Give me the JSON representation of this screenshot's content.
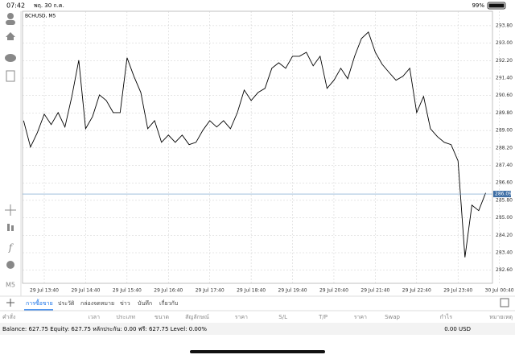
{
  "status_bar": {
    "time": "07:42",
    "date": "พฤ. 30 ก.ค.",
    "battery": "99%"
  },
  "side_toolbar": {
    "timeframe": "M5"
  },
  "chart_data": {
    "type": "line",
    "title": "BCHUSD, M5",
    "categories": [
      null,
      null,
      null,
      "29 Jul 13:40",
      null,
      null,
      null,
      null,
      null,
      "29 Jul 14:40",
      null,
      null,
      null,
      null,
      null,
      "29 Jul 15:40",
      null,
      null,
      null,
      null,
      null,
      "29 Jul 16:40",
      null,
      null,
      null,
      null,
      null,
      "29 Jul 17:40",
      null,
      null,
      null,
      null,
      null,
      "29 Jul 18:40",
      null,
      null,
      null,
      null,
      null,
      "29 Jul 19:40",
      null,
      null,
      null,
      null,
      null,
      "29 Jul 20:40",
      null,
      null,
      null,
      null,
      null,
      "29 Jul 21:40",
      null,
      null,
      null,
      null,
      null,
      "29 Jul 22:40",
      null,
      null,
      null,
      null,
      null,
      "29 Jul 23:40",
      null,
      null,
      null,
      null,
      null,
      "30 Jul 00:40"
    ],
    "values": [
      289.45,
      288.24,
      288.9,
      289.75,
      289.27,
      289.82,
      289.16,
      290.56,
      292.22,
      289.08,
      289.64,
      290.63,
      290.37,
      289.82,
      289.82,
      292.33,
      291.48,
      290.74,
      289.08,
      289.45,
      288.46,
      288.79,
      288.46,
      288.79,
      288.35,
      288.46,
      289.01,
      289.45,
      289.16,
      289.45,
      289.08,
      289.82,
      290.85,
      290.37,
      290.74,
      290.93,
      291.85,
      292.1,
      291.85,
      292.4,
      292.4,
      292.58,
      291.96,
      292.4,
      290.93,
      291.3,
      291.85,
      291.37,
      292.4,
      293.21,
      293.51,
      292.58,
      292.03,
      291.66,
      291.3,
      291.48,
      291.85,
      289.82,
      290.56,
      289.08,
      288.72,
      288.46,
      288.35,
      287.61,
      283.19,
      285.58,
      285.33,
      286.14,
      null,
      null
    ],
    "color": "#000000",
    "ylim": [
      282.0,
      294.46
    ],
    "yticks": [
      {
        "value": 293.8,
        "label": "293.80"
      },
      {
        "value": 293.0,
        "label": "293.00"
      },
      {
        "value": 292.2,
        "label": "292.20"
      },
      {
        "value": 291.4,
        "label": "291.40"
      },
      {
        "value": 290.6,
        "label": "290.60"
      },
      {
        "value": 289.8,
        "label": "289.80"
      },
      {
        "value": 289.0,
        "label": "289.00"
      },
      {
        "value": 288.2,
        "label": "288.20"
      },
      {
        "value": 287.4,
        "label": "287.40"
      },
      {
        "value": 286.6,
        "label": "286.60"
      },
      {
        "value": 285.8,
        "label": "285.80"
      },
      {
        "value": 285.0,
        "label": "285.00"
      },
      {
        "value": 284.2,
        "label": "284.20"
      },
      {
        "value": 283.4,
        "label": "283.40"
      },
      {
        "value": 282.6,
        "label": "282.60"
      }
    ],
    "current_price": 286.09,
    "grid": true
  },
  "tabs": [
    "การซื้อขาย",
    "ประวัติ",
    "กล่องจดหมาย",
    "ข่าว",
    "บันทึก",
    "เกี่ยวกับ"
  ],
  "table": {
    "headers": [
      "คำสั่ง",
      "เวลา",
      "ประเภท",
      "ขนาด",
      "สัญลักษณ์",
      "ราคา",
      "S/L",
      "T/P",
      "ราคา",
      "Swap",
      "กำไร",
      "หมายเหตุ"
    ]
  },
  "footer": {
    "summary": "Balance: 627.75 Equity: 627.75 หลักประกัน: 0.00 ฟรี: 627.75 Level: 0.00%",
    "profit": "0.00  USD"
  }
}
